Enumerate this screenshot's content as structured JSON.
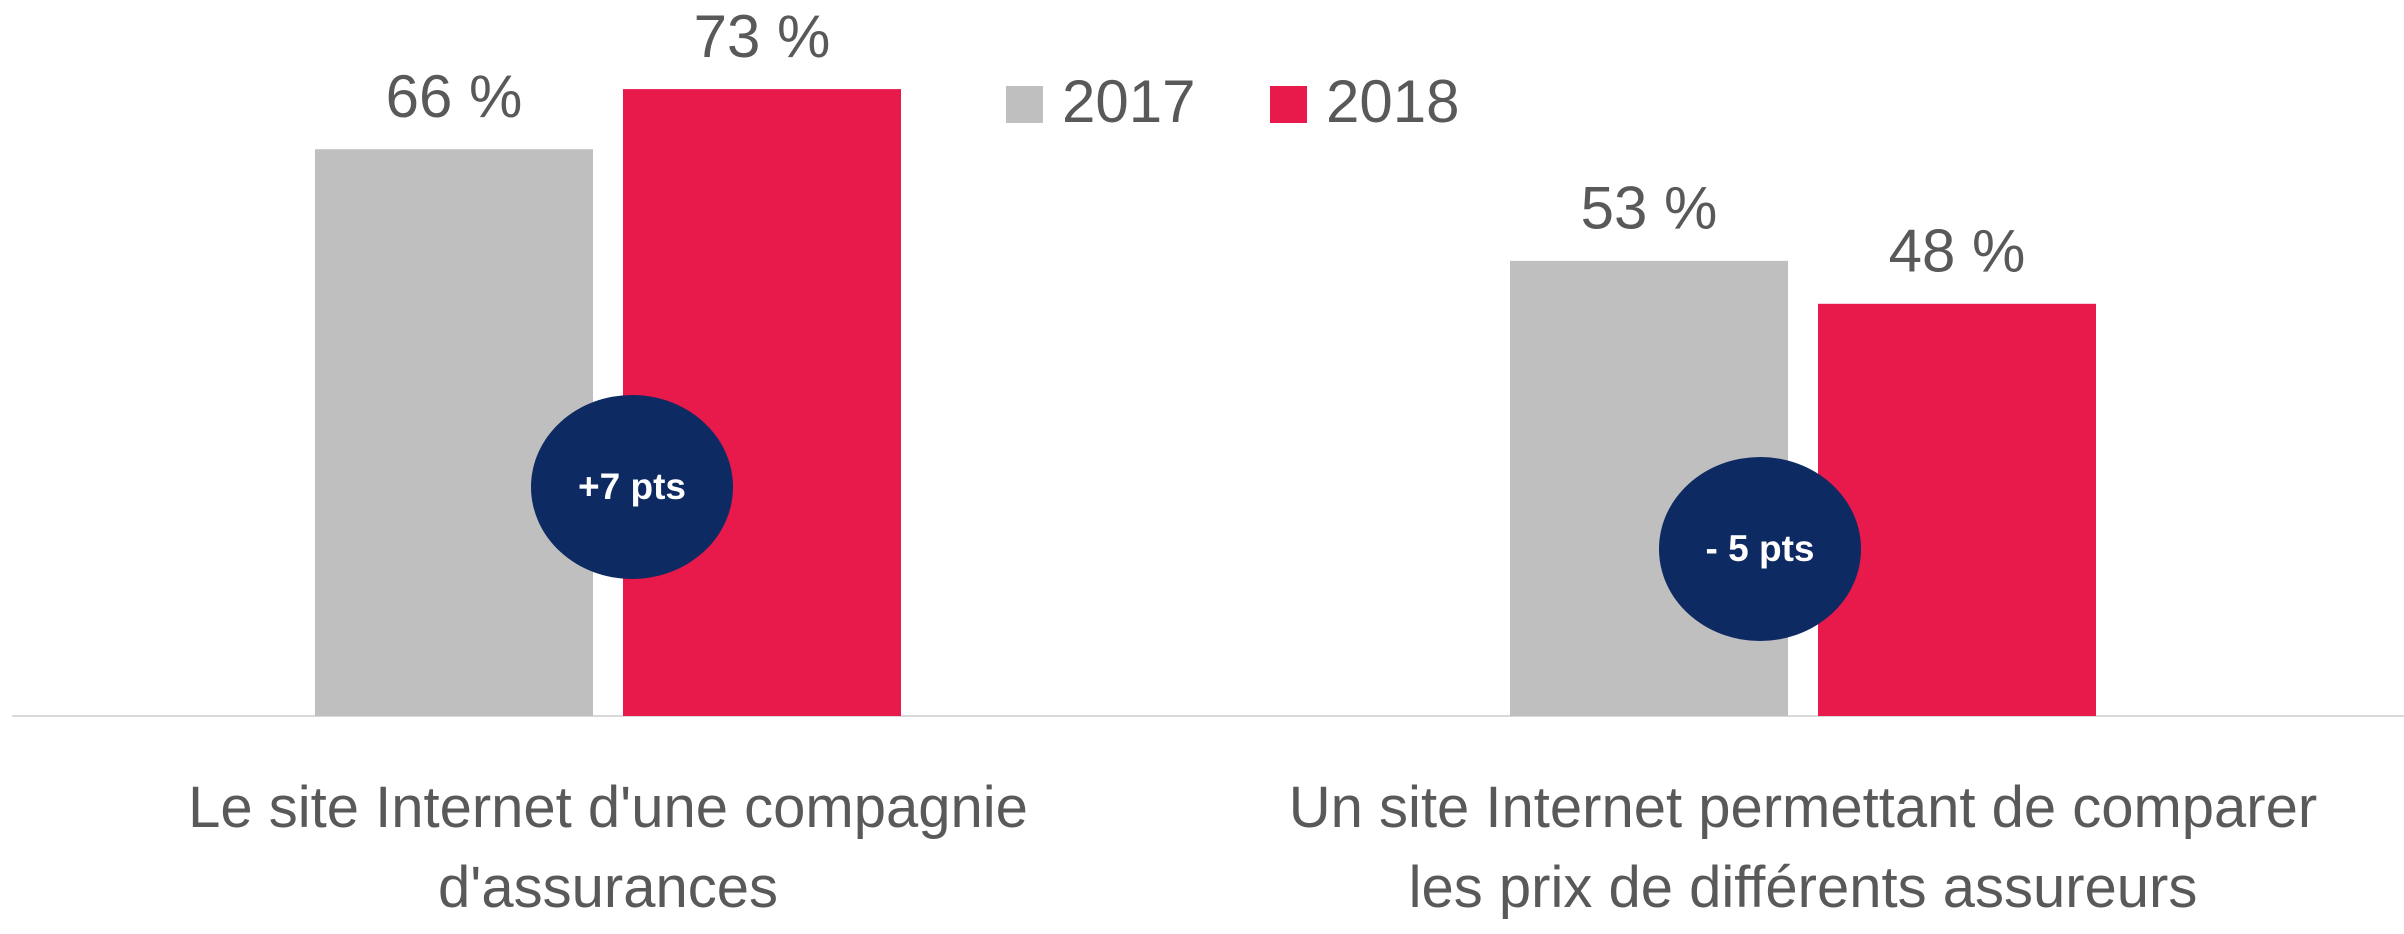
{
  "chart_data": {
    "type": "bar",
    "categories": [
      "Le site Internet d'une compagnie\nd'assurances",
      "Un site Internet permettant de comparer\nles prix de différents assureurs"
    ],
    "series": [
      {
        "name": "2017",
        "color": "#bfbfbf",
        "values": [
          66,
          53
        ],
        "value_labels": [
          "66 %",
          "53 %"
        ]
      },
      {
        "name": "2018",
        "color": "#e8194b",
        "values": [
          73,
          48
        ],
        "value_labels": [
          "73 %",
          "48 %"
        ]
      }
    ],
    "annotations": [
      "+7 pts",
      "- 5 pts"
    ],
    "annotation_color": "#0d2a63",
    "ylim": [
      0,
      80
    ]
  }
}
